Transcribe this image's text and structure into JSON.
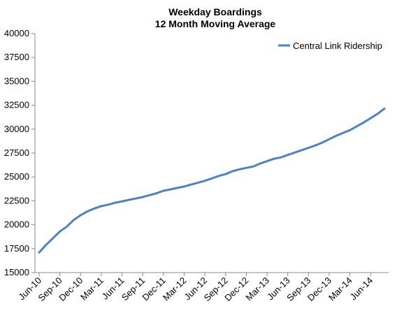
{
  "chart_data": {
    "type": "line",
    "title": "Weekday Boardings",
    "subtitle": "12 Month Moving Average",
    "xlabel": "",
    "ylabel": "",
    "ylim": [
      15000,
      40000
    ],
    "y_ticks": [
      15000,
      17500,
      20000,
      22500,
      25000,
      27500,
      30000,
      32500,
      35000,
      37500,
      40000
    ],
    "y_tick_labels": [
      "15000",
      "17500",
      "20000",
      "22500",
      "25000",
      "27500",
      "30000",
      "32500",
      "35000",
      "37500",
      "40000"
    ],
    "x_tick_labels": [
      "Jun-10",
      "Sep-10",
      "Dec-10",
      "Mar-11",
      "Jun-11",
      "Sep-11",
      "Dec-11",
      "Mar-12",
      "Jun-12",
      "Sep-12",
      "Dec-12",
      "Mar-13",
      "Jun-13",
      "Sep-13",
      "Dec-13",
      "Mar-14",
      "Jun-14"
    ],
    "grid": false,
    "legend_position": "top-right",
    "series": [
      {
        "name": "Central Link Ridership",
        "color": "#4F81BD",
        "x": [
          "Jun-10",
          "Jul-10",
          "Aug-10",
          "Sep-10",
          "Oct-10",
          "Nov-10",
          "Dec-10",
          "Jan-11",
          "Feb-11",
          "Mar-11",
          "Apr-11",
          "May-11",
          "Jun-11",
          "Jul-11",
          "Aug-11",
          "Sep-11",
          "Oct-11",
          "Nov-11",
          "Dec-11",
          "Jan-12",
          "Feb-12",
          "Mar-12",
          "Apr-12",
          "May-12",
          "Jun-12",
          "Jul-12",
          "Aug-12",
          "Sep-12",
          "Oct-12",
          "Nov-12",
          "Dec-12",
          "Jan-13",
          "Feb-13",
          "Mar-13",
          "Apr-13",
          "May-13",
          "Jun-13",
          "Jul-13",
          "Aug-13",
          "Sep-13",
          "Oct-13",
          "Nov-13",
          "Dec-13",
          "Jan-14",
          "Feb-14",
          "Mar-14",
          "Apr-14",
          "May-14",
          "Jun-14",
          "Jul-14",
          "Aug-14"
        ],
        "values": [
          17100,
          17900,
          18600,
          19300,
          19800,
          20500,
          21000,
          21400,
          21700,
          21950,
          22100,
          22300,
          22450,
          22600,
          22750,
          22900,
          23100,
          23300,
          23550,
          23700,
          23850,
          24000,
          24200,
          24400,
          24600,
          24850,
          25100,
          25300,
          25600,
          25800,
          25950,
          26100,
          26400,
          26650,
          26900,
          27050,
          27300,
          27550,
          27800,
          28050,
          28300,
          28600,
          28950,
          29300,
          29600,
          29900,
          30300,
          30700,
          31150,
          31600,
          32150
        ]
      }
    ]
  }
}
